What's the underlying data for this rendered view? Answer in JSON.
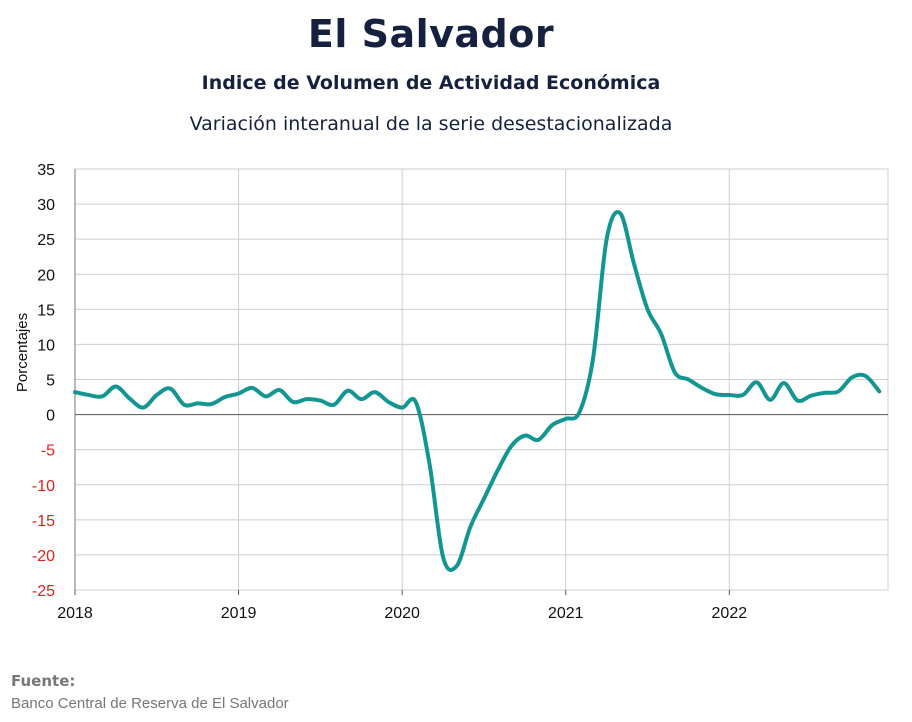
{
  "title": "El Salvador",
  "subtitle": "Indice de Volumen de  Actividad Económica",
  "subtitle2": "Variación interanual de la serie desestacionalizada",
  "source": {
    "label": "Fuente:",
    "text": "Banco Central de Reserva de El Salvador"
  },
  "colors": {
    "line": "#139692",
    "negative_tick": "#e0201b",
    "positive_tick": "#111111",
    "grid": "#cfcfcf"
  },
  "chart_data": {
    "type": "line",
    "title": "El Salvador",
    "ylabel": "Porcentajes",
    "xlabel": "",
    "ylim": [
      -25,
      35
    ],
    "xlim": [
      2018.0,
      2022.97
    ],
    "yticks": [
      35,
      30,
      25,
      20,
      15,
      10,
      5,
      0,
      -5,
      -10,
      -15,
      -20,
      -25
    ],
    "xticks": [
      "2018",
      "2019",
      "2020",
      "2021",
      "2022"
    ],
    "grid": true,
    "legend": "none",
    "series": [
      {
        "x": [
          2018.0,
          2018.083,
          2018.167,
          2018.25,
          2018.333,
          2018.417,
          2018.5,
          2018.583,
          2018.667,
          2018.75,
          2018.833,
          2018.917,
          2019.0,
          2019.083,
          2019.167,
          2019.25,
          2019.333,
          2019.417,
          2019.5,
          2019.583,
          2019.667,
          2019.75,
          2019.833,
          2019.917,
          2020.0,
          2020.083,
          2020.167,
          2020.25,
          2020.333,
          2020.417,
          2020.5,
          2020.583,
          2020.667,
          2020.75,
          2020.833,
          2020.917,
          2021.0,
          2021.083,
          2021.167,
          2021.25,
          2021.333,
          2021.417,
          2021.5,
          2021.583,
          2021.667,
          2021.75,
          2021.833,
          2021.917,
          2022.0,
          2022.083,
          2022.167,
          2022.25,
          2022.333,
          2022.417,
          2022.5,
          2022.583,
          2022.667,
          2022.75,
          2022.833,
          2022.917
        ],
        "values": [
          3.2,
          2.8,
          2.6,
          4.0,
          2.3,
          1.0,
          2.8,
          3.7,
          1.4,
          1.6,
          1.5,
          2.5,
          3.0,
          3.8,
          2.6,
          3.5,
          1.8,
          2.2,
          2.0,
          1.4,
          3.4,
          2.2,
          3.2,
          1.8,
          1.0,
          1.8,
          -7.0,
          -20.3,
          -21.6,
          -16.0,
          -12.0,
          -8.0,
          -4.5,
          -3.0,
          -3.6,
          -1.5,
          -0.6,
          0.3,
          8.0,
          25.0,
          28.7,
          21.5,
          15.0,
          11.5,
          6.0,
          5.0,
          3.8,
          2.9,
          2.8,
          2.8,
          4.6,
          2.1,
          4.5,
          2.0,
          2.7,
          3.1,
          3.3,
          5.3,
          5.5,
          3.3
        ]
      }
    ]
  }
}
